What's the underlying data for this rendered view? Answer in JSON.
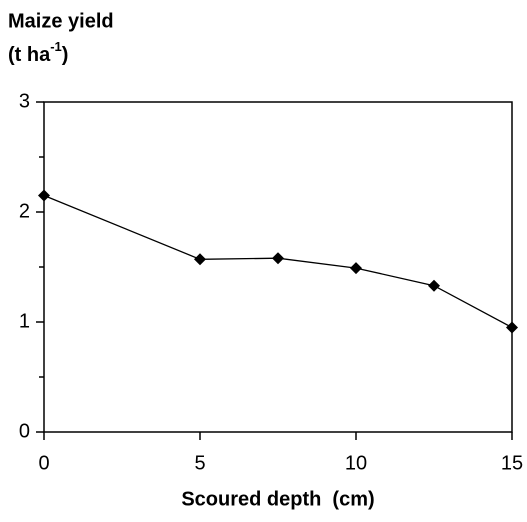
{
  "chart_data": {
    "type": "line",
    "ylabel": {
      "line1": "Maize yield",
      "line2": "(t ha",
      "sup": "-1",
      "line2_end": ")"
    },
    "xlabel": "Scoured depth  (cm)",
    "x": [
      0,
      5,
      7.5,
      10,
      12.5,
      15
    ],
    "values": [
      2.15,
      1.57,
      1.58,
      1.49,
      1.33,
      0.95
    ],
    "color": "#000000",
    "xlim": [
      0,
      15
    ],
    "xticks": [
      0,
      5,
      10,
      15
    ],
    "ylim": [
      0,
      3
    ],
    "yticks": [
      0,
      1,
      2,
      3
    ],
    "yminorticks": [
      0.5,
      1.5,
      2.5
    ],
    "grid": false
  }
}
